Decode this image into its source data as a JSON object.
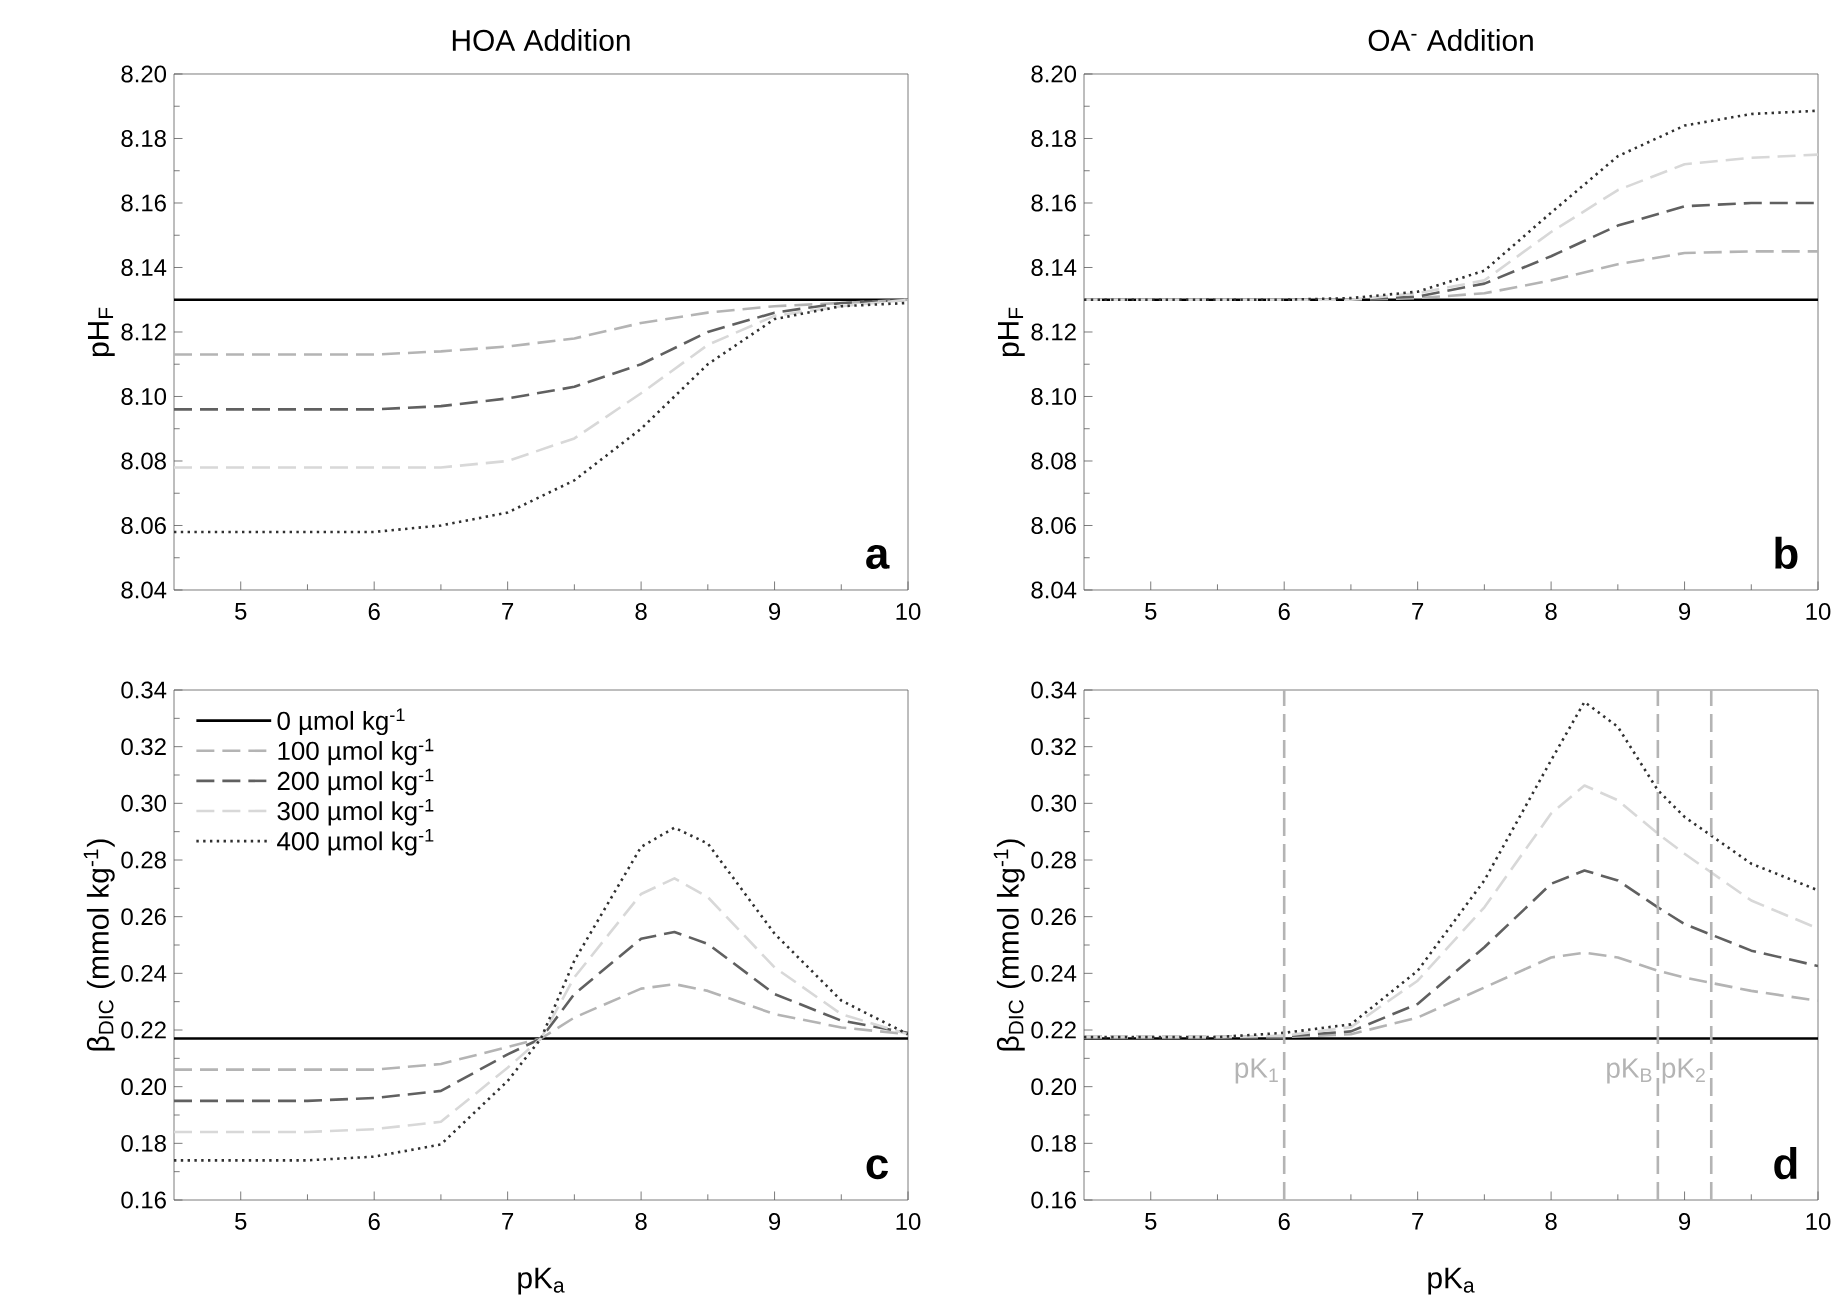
{
  "chart_data": [
    {
      "type": "line",
      "title": "HOA Addition",
      "ylabel": "pH$_{F}$",
      "x": [
        4.5,
        5,
        5.5,
        6,
        6.5,
        7,
        7.5,
        8,
        8.5,
        9,
        9.5,
        10
      ],
      "xlim": [
        4.5,
        10
      ],
      "xticks": [
        5,
        6,
        7,
        8,
        9,
        10
      ],
      "ylim": [
        8.04,
        8.2
      ],
      "yticks": [
        8.04,
        8.06,
        8.08,
        {
          "value": 8.1,
          "label": "8.10"
        },
        8.12,
        8.14,
        8.16,
        8.18,
        {
          "value": 8.2,
          "label": "8.20"
        }
      ],
      "marker": "none",
      "annotations": [
        "a"
      ],
      "series": [
        {
          "color": "#000000",
          "line_style": "solid",
          "values": [
            8.13,
            8.13,
            8.13,
            8.13,
            8.13,
            8.13,
            8.13,
            8.13,
            8.13,
            8.13,
            8.13,
            8.13
          ]
        },
        {
          "color": "#b4b4b4",
          "line_style": "dashed",
          "values": [
            8.113,
            8.113,
            8.113,
            8.113,
            8.114,
            8.1155,
            8.118,
            8.1228,
            8.126,
            8.128,
            8.129,
            8.13
          ]
        },
        {
          "color": "#606060",
          "line_style": "dashed",
          "values": [
            8.096,
            8.096,
            8.096,
            8.096,
            8.097,
            8.0994,
            8.103,
            8.11,
            8.12,
            8.126,
            8.129,
            8.13
          ]
        },
        {
          "color": "#d8d8d8",
          "line_style": "dashed",
          "values": [
            8.078,
            8.078,
            8.078,
            8.078,
            8.078,
            8.08,
            8.087,
            8.101,
            8.116,
            8.125,
            8.128,
            8.13
          ]
        },
        {
          "color": "#303030",
          "line_style": "dotted",
          "values": [
            8.058,
            8.058,
            8.058,
            8.058,
            8.06,
            8.064,
            8.074,
            8.09,
            8.11,
            8.124,
            8.128,
            8.129
          ]
        }
      ]
    },
    {
      "type": "line",
      "title": "OA$^{-}$ Addition",
      "ylabel": "pH$_{F}$",
      "x": [
        4.5,
        5,
        5.5,
        6,
        6.5,
        7,
        7.5,
        8,
        8.5,
        9,
        9.5,
        10
      ],
      "xlim": [
        4.5,
        10
      ],
      "xticks": [
        5,
        6,
        7,
        8,
        9,
        10
      ],
      "ylim": [
        8.04,
        8.2
      ],
      "yticks": [
        8.04,
        8.06,
        8.08,
        {
          "value": 8.1,
          "label": "8.10"
        },
        8.12,
        8.14,
        8.16,
        8.18,
        {
          "value": 8.2,
          "label": "8.20"
        }
      ],
      "marker": "none",
      "annotations": [
        "b"
      ],
      "series": [
        {
          "color": "#000000",
          "line_style": "solid",
          "values": [
            8.13,
            8.13,
            8.13,
            8.13,
            8.13,
            8.13,
            8.13,
            8.13,
            8.13,
            8.13,
            8.13,
            8.13
          ]
        },
        {
          "color": "#b4b4b4",
          "line_style": "dashed",
          "values": [
            8.13,
            8.13,
            8.13,
            8.13,
            8.13,
            8.1305,
            8.132,
            8.136,
            8.141,
            8.1445,
            8.145,
            8.145
          ]
        },
        {
          "color": "#606060",
          "line_style": "dashed",
          "values": [
            8.13,
            8.13,
            8.13,
            8.13,
            8.13,
            8.131,
            8.135,
            8.1435,
            8.153,
            8.159,
            8.16,
            8.16
          ]
        },
        {
          "color": "#d8d8d8",
          "line_style": "dashed",
          "values": [
            8.13,
            8.13,
            8.13,
            8.13,
            8.13,
            8.132,
            8.136,
            8.151,
            8.164,
            8.172,
            8.174,
            8.175
          ]
        },
        {
          "color": "#303030",
          "line_style": "dotted",
          "values": [
            8.13,
            8.13,
            8.13,
            8.13,
            8.1305,
            8.1325,
            8.139,
            8.157,
            8.1745,
            8.184,
            8.1876,
            8.1886
          ]
        }
      ]
    },
    {
      "type": "line",
      "xlabel": "pK$_{a}$",
      "ylabel": "β$_{DIC}$ (mmol kg$^{-1}$)",
      "x": [
        4.5,
        5,
        5.5,
        6,
        6.5,
        7,
        7.25,
        7.5,
        8,
        8.25,
        8.5,
        9,
        9.5,
        10
      ],
      "xlim": [
        4.5,
        10
      ],
      "xticks": [
        5,
        6,
        7,
        8,
        9,
        10
      ],
      "ylim": [
        0.16,
        0.34
      ],
      "yticks": [
        0.16,
        0.18,
        {
          "value": 0.2,
          "label": "0.20"
        },
        0.22,
        0.24,
        0.26,
        0.28,
        {
          "value": 0.3,
          "label": "0.30"
        },
        0.32,
        0.34
      ],
      "marker": "none",
      "legend": "top left",
      "annotations": [
        "c"
      ],
      "series": [
        {
          "name": "0 µmol kg$^{-1}$",
          "color": "#000000",
          "line_style": "solid",
          "values": [
            0.217,
            0.217,
            0.217,
            0.217,
            0.217,
            0.217,
            0.217,
            0.217,
            0.217,
            0.217,
            0.217,
            0.217,
            0.217,
            0.217
          ]
        },
        {
          "name": "100 µmol kg$^{-1}$",
          "color": "#b4b4b4",
          "line_style": "dashed",
          "values": [
            0.206,
            0.206,
            0.206,
            0.206,
            0.208,
            0.214,
            0.217,
            0.2244,
            0.2346,
            0.2362,
            0.2338,
            0.2256,
            0.2209,
            0.2185
          ]
        },
        {
          "name": "200 µmol kg$^{-1}$",
          "color": "#606060",
          "line_style": "dashed",
          "values": [
            0.195,
            0.195,
            0.195,
            0.196,
            0.1985,
            0.2114,
            0.217,
            0.2327,
            0.2522,
            0.2546,
            0.2504,
            0.2327,
            0.2233,
            0.219
          ]
        },
        {
          "name": "300 µmol kg$^{-1}$",
          "color": "#d8d8d8",
          "line_style": "dashed",
          "values": [
            0.184,
            0.184,
            0.184,
            0.185,
            0.1876,
            0.2067,
            0.217,
            0.2386,
            0.268,
            0.2735,
            0.2669,
            0.2421,
            0.2256,
            0.2185
          ]
        },
        {
          "name": "400 µmol kg$^{-1}$",
          "color": "#303030",
          "line_style": "dotted",
          "values": [
            0.174,
            0.174,
            0.174,
            0.1753,
            0.1796,
            0.202,
            0.217,
            0.2445,
            0.2846,
            0.2914,
            0.2858,
            0.254,
            0.2304,
            0.2185
          ]
        }
      ]
    },
    {
      "type": "line",
      "xlabel": "pK$_{a}$",
      "ylabel": "β$_{DIC}$ (mmol kg$^{-1}$)",
      "x": [
        4.5,
        5,
        5.5,
        6,
        6.5,
        7,
        7.5,
        8,
        8.25,
        8.5,
        8.8,
        9,
        9.5,
        10
      ],
      "xlim": [
        4.5,
        10
      ],
      "xticks": [
        5,
        6,
        7,
        8,
        9,
        10
      ],
      "ylim": [
        0.16,
        0.34
      ],
      "yticks": [
        0.16,
        0.18,
        {
          "value": 0.2,
          "label": "0.20"
        },
        0.22,
        0.24,
        0.26,
        0.28,
        {
          "value": 0.3,
          "label": "0.30"
        },
        0.32,
        0.34
      ],
      "marker": "none",
      "annotations": [
        "d"
      ],
      "ref_lines": [
        {
          "axis": "x",
          "value": 6,
          "label": "pK$_{1}$",
          "color": "#b4b4b4",
          "line_style": "dashed"
        },
        {
          "axis": "x",
          "value": 8.8,
          "label": "pK$_{B}$",
          "color": "#b4b4b4",
          "line_style": "dashed"
        },
        {
          "axis": "x",
          "value": 9.2,
          "label": "pK$_{2}$",
          "color": "#b4b4b4",
          "line_style": "dashed"
        }
      ],
      "series": [
        {
          "color": "#000000",
          "line_style": "solid",
          "values": [
            0.217,
            0.217,
            0.217,
            0.217,
            0.217,
            0.217,
            0.217,
            0.217,
            0.217,
            0.217,
            0.217,
            0.217,
            0.217,
            0.217
          ]
        },
        {
          "color": "#b4b4b4",
          "line_style": "dashed",
          "values": [
            0.2175,
            0.2175,
            0.2175,
            0.2175,
            0.2185,
            0.2244,
            0.235,
            0.2456,
            0.2473,
            0.2456,
            0.2409,
            0.2385,
            0.2338,
            0.2303
          ]
        },
        {
          "color": "#606060",
          "line_style": "dashed",
          "values": [
            0.2175,
            0.2175,
            0.2175,
            0.2178,
            0.2195,
            0.2292,
            0.2492,
            0.2716,
            0.2763,
            0.2728,
            0.2633,
            0.2574,
            0.248,
            0.2426
          ]
        },
        {
          "color": "#d8d8d8",
          "line_style": "dashed",
          "values": [
            0.2175,
            0.2175,
            0.2175,
            0.218,
            0.221,
            0.2374,
            0.2633,
            0.2964,
            0.3063,
            0.3011,
            0.2893,
            0.2822,
            0.2657,
            0.2558
          ]
        },
        {
          "color": "#303030",
          "line_style": "dotted",
          "values": [
            0.2175,
            0.2175,
            0.2175,
            0.219,
            0.222,
            0.2409,
            0.2728,
            0.3152,
            0.3358,
            0.327,
            0.3046,
            0.2952,
            0.2787,
            0.2693
          ]
        }
      ]
    }
  ]
}
